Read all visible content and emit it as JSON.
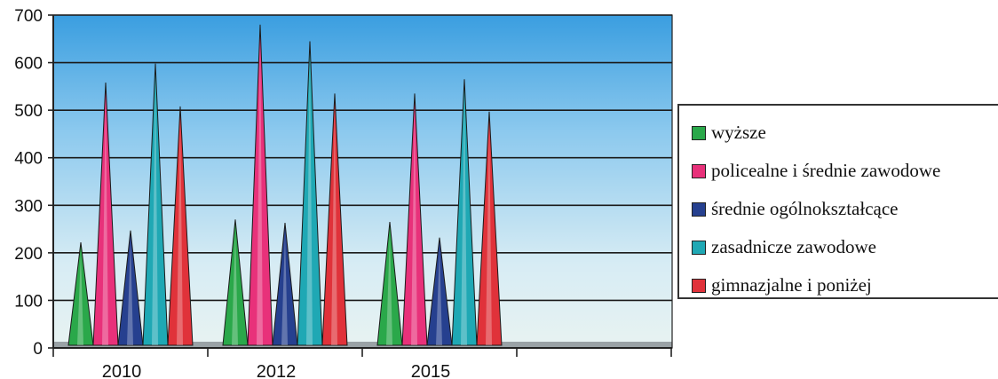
{
  "chart_data": {
    "type": "bar",
    "categories": [
      "2010",
      "2012",
      "2015"
    ],
    "series": [
      {
        "name": "wyższe",
        "color": "#2aa84a",
        "values": [
          222,
          270,
          265
        ]
      },
      {
        "name": "policealne i średnie zawodowe",
        "color": "#e8317a",
        "values": [
          558,
          680,
          535
        ]
      },
      {
        "name": "średnie ogólnokształcące",
        "color": "#26408f",
        "values": [
          247,
          263,
          232
        ]
      },
      {
        "name": "zasadnicze zawodowe",
        "color": "#1fa8b4",
        "values": [
          598,
          645,
          565
        ]
      },
      {
        "name": "gimnazjalne i poniżej",
        "color": "#e0323a",
        "values": [
          508,
          535,
          497
        ]
      }
    ],
    "ylim": [
      0,
      700
    ],
    "yticks": [
      0,
      100,
      200,
      300,
      400,
      500,
      600,
      700
    ],
    "grid": true,
    "legend_position": "right"
  }
}
